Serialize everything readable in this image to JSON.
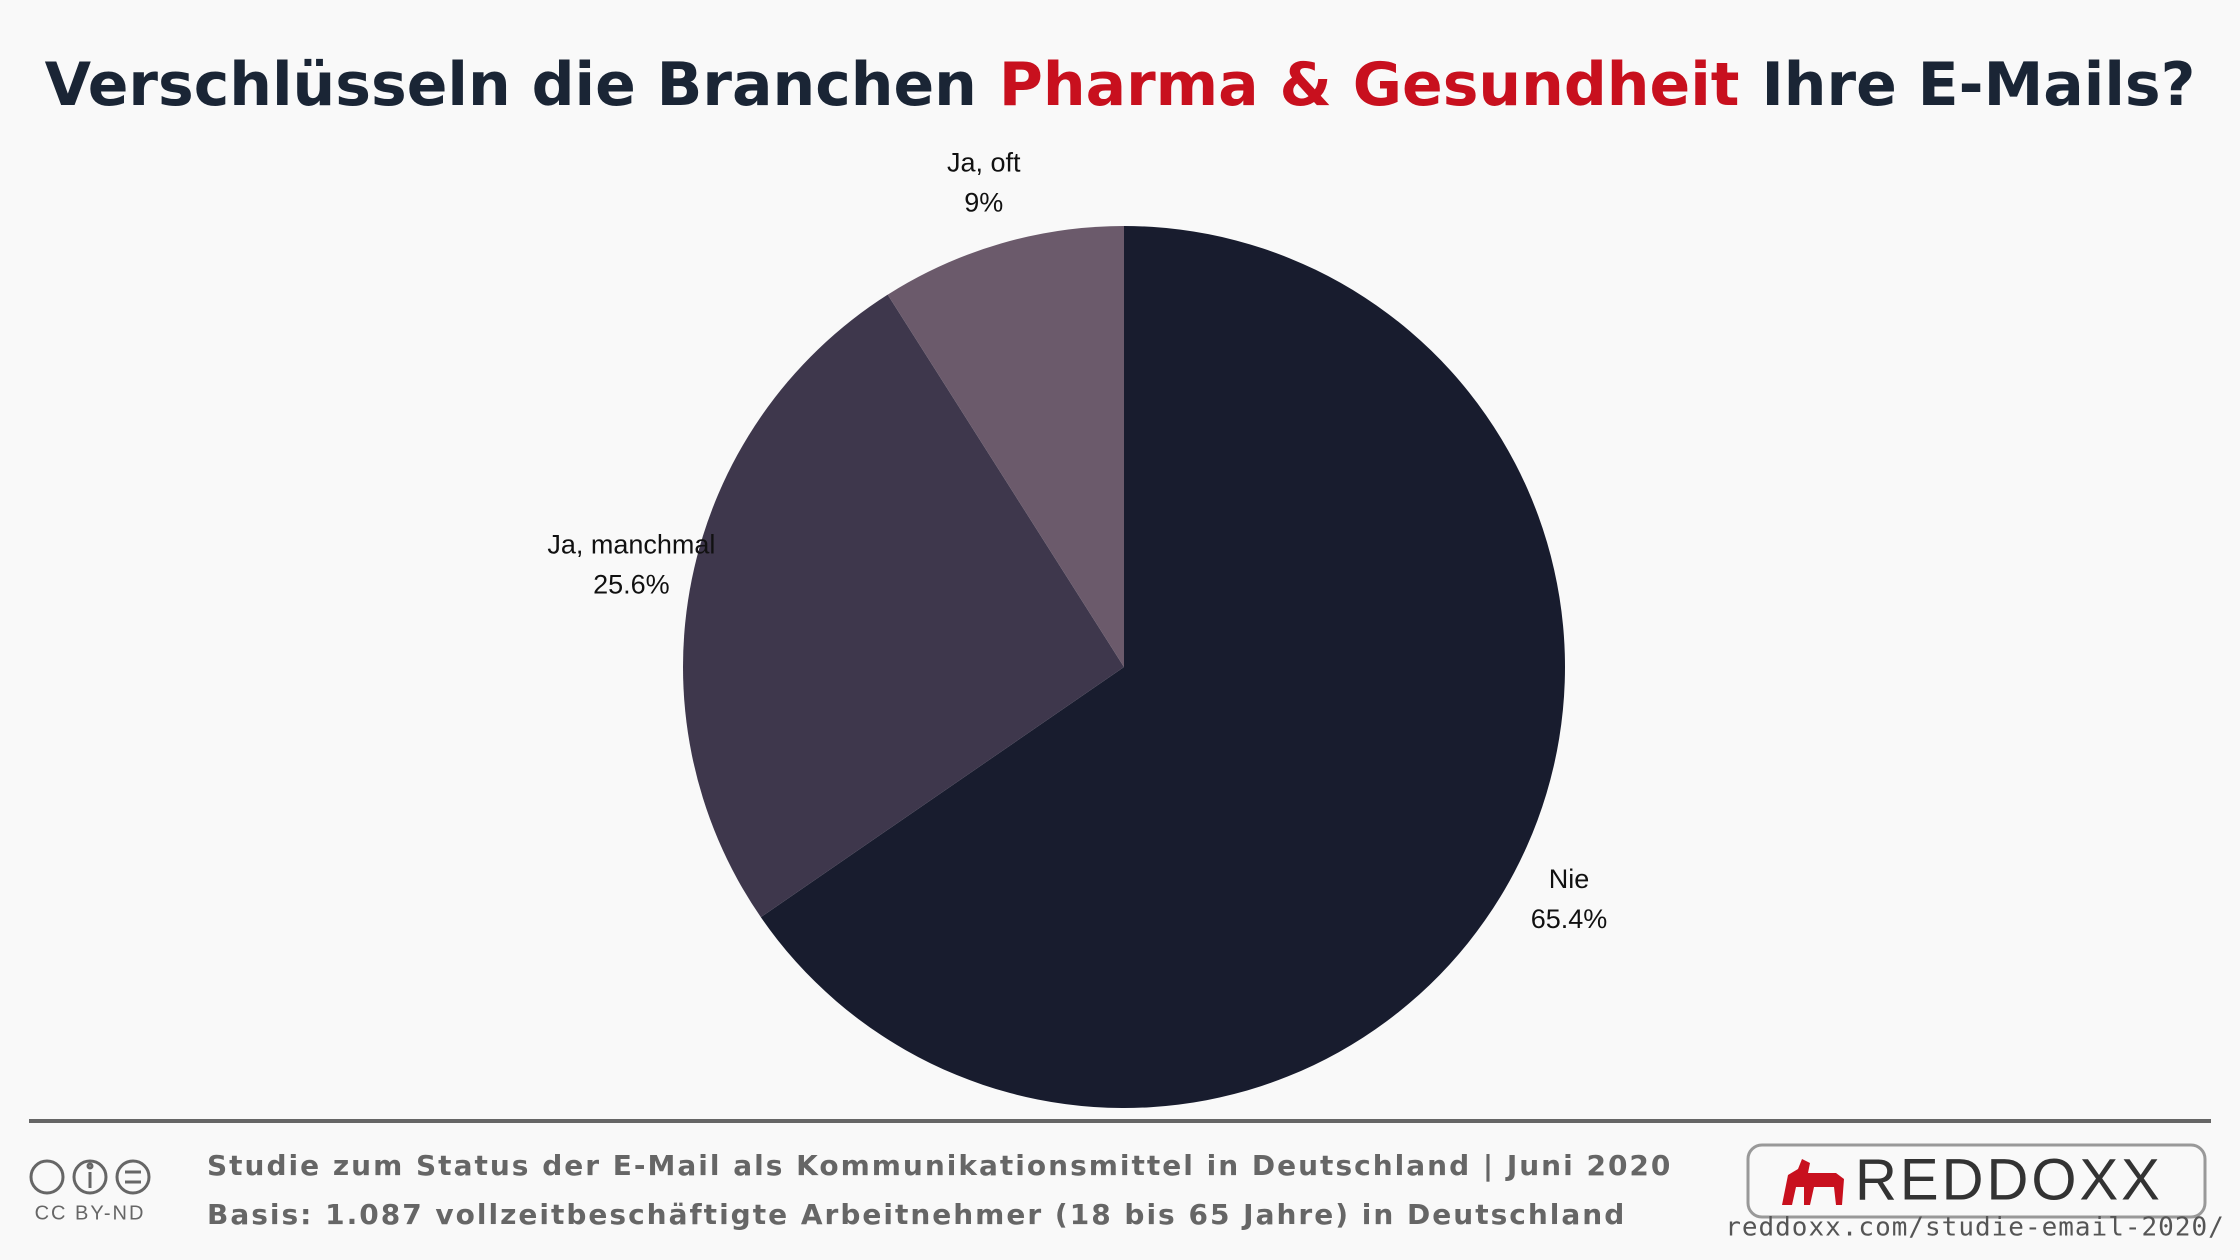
{
  "chart_data": {
    "type": "pie",
    "title": [
      "Verschlüsseln die Branchen",
      "Pharma & Gesundheit",
      "Ihre E-Mails?"
    ],
    "categories": [
      "Nie",
      "Ja, manchmal",
      "Ja, oft"
    ],
    "values": [
      65.4,
      25.6,
      9
    ],
    "value_labels": [
      "65.4%",
      "25.6%",
      "9%"
    ],
    "colors": [
      "#181c2e",
      "#3e374c",
      "#6b5a6b"
    ]
  },
  "footer": {
    "study": "Studie zum Status der E-Mail als Kommunikationsmittel in Deutschland | Juni 2020",
    "basis": "Basis: 1.087 vollzeitbeschäftigte Arbeitnehmer (18 bis 65 Jahre) in Deutschland",
    "license": "CC BY-ND",
    "brand": "REDDOXX",
    "url": "reddoxx.com/studie-email-2020/"
  }
}
